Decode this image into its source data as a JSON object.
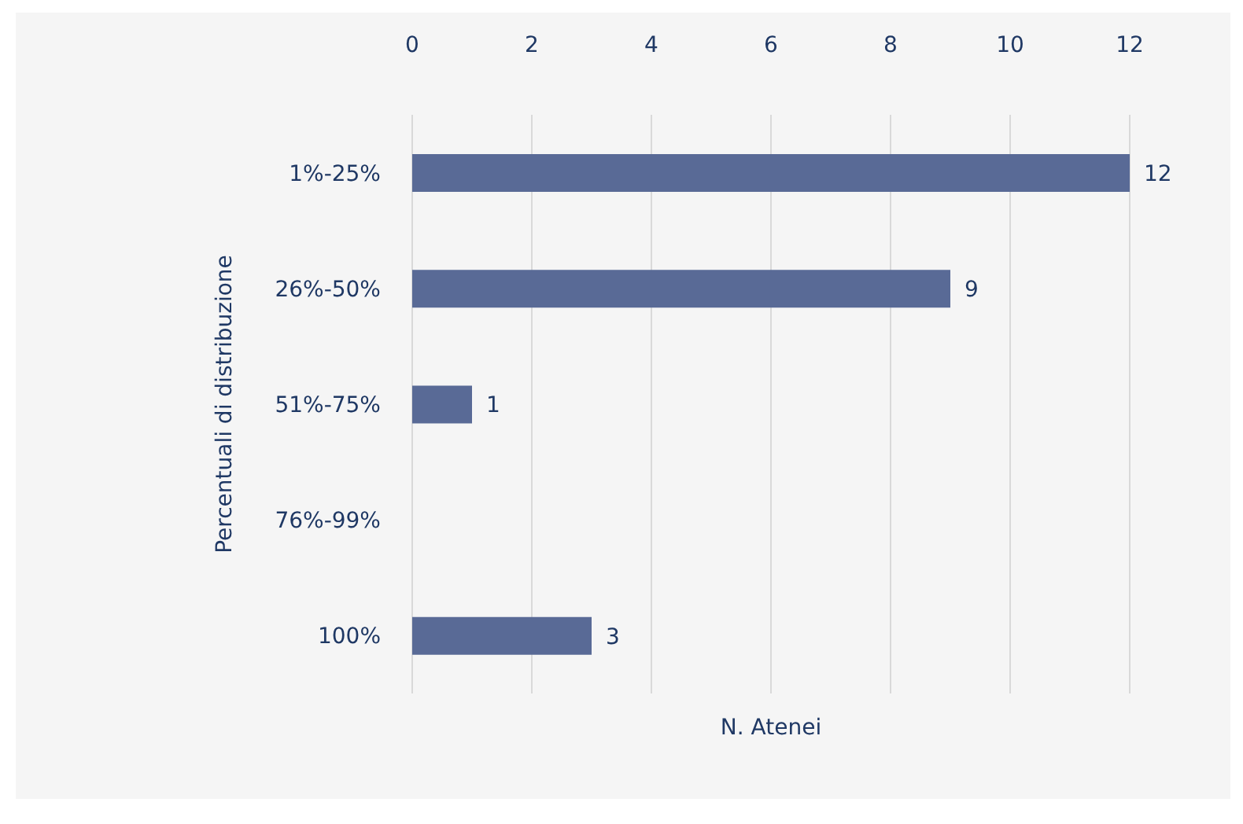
{
  "chart_data": {
    "type": "bar",
    "orientation": "horizontal",
    "xlabel": "N. Atenei",
    "ylabel": "Percentuali di distribuzione",
    "categories": [
      "1%-25%",
      "26%-50%",
      "51%-75%",
      "76%-99%",
      "100%"
    ],
    "values": [
      12,
      9,
      1,
      null,
      3
    ],
    "value_labels": [
      "12",
      "9",
      "1",
      null,
      "3"
    ],
    "color": "#596a96",
    "xlim": [
      0,
      12
    ],
    "xticks": [
      0,
      2,
      4,
      6,
      8,
      10,
      12
    ],
    "grid": "x"
  }
}
